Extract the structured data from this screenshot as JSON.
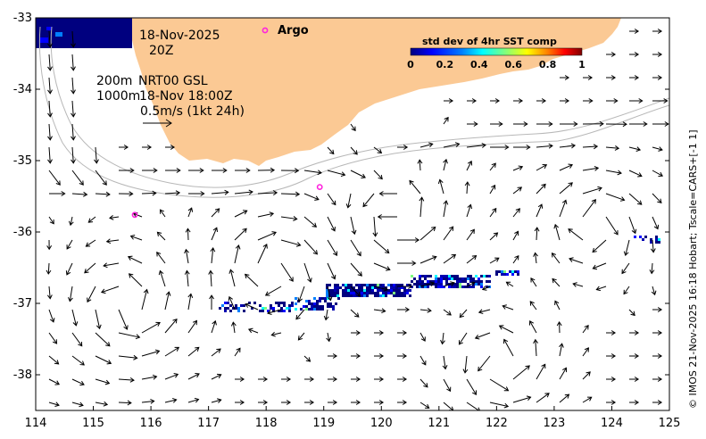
{
  "map": {
    "lon_range": [
      114,
      125
    ],
    "lat_range": [
      -38.5,
      -33
    ],
    "x_ticks": [
      "114",
      "115",
      "116",
      "117",
      "118",
      "119",
      "120",
      "121",
      "122",
      "123",
      "124",
      "125"
    ],
    "y_ticks": [
      "-33",
      "-34",
      "-35",
      "-36",
      "-37",
      "-38"
    ],
    "date_label": "18-Nov-2025",
    "hour_label": "20Z",
    "depth_label": "200m",
    "depth2_label": "1000m",
    "product_label": "NRT00 GSL",
    "time_label": "18-Nov 18:00Z",
    "scale_label": "0.5m/s (1kt 24h)",
    "argo_label": "Argo",
    "credit": "© IMOS 21-Nov-2025 16:18 Hobart; Tscale=CARS+[-1 1]",
    "land_color": "#fbc994",
    "argo_color": "#ff22dd",
    "argo_floats": [
      {
        "lon": 117.98,
        "lat": -33.18
      },
      {
        "lon": 118.93,
        "lat": -35.37
      },
      {
        "lon": 115.72,
        "lat": -35.76
      }
    ]
  },
  "colorbar": {
    "title": "std dev of 4hr SST comp",
    "ticks": [
      "0",
      "0.2",
      "0.4",
      "0.6",
      "0.8",
      "1"
    ],
    "range": [
      0,
      1
    ],
    "colors": [
      "#00007f",
      "#0000ff",
      "#007fff",
      "#00ffff",
      "#7fff7f",
      "#ffff00",
      "#ff7f00",
      "#ff0000",
      "#7f0000"
    ]
  }
}
